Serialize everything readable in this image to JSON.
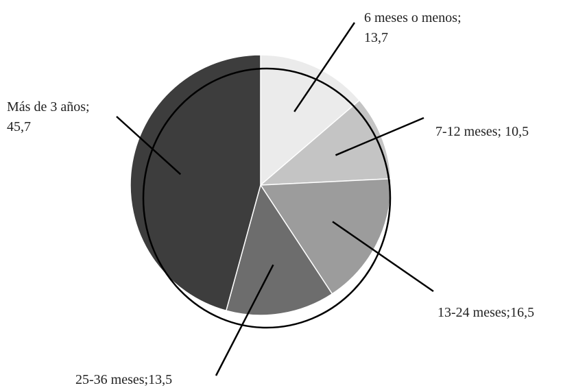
{
  "chart_data": {
    "type": "pie",
    "title": "",
    "categories": [
      "6 meses o menos",
      "7-12 meses",
      "13-24 meses",
      "25-36 meses",
      "Más de 3 años"
    ],
    "values": [
      13.7,
      10.5,
      16.5,
      13.5,
      45.7
    ],
    "colors": [
      "#ebebeb",
      "#c4c4c4",
      "#9c9c9c",
      "#6d6d6d",
      "#3d3d3d"
    ],
    "labels": [
      {
        "line1": "6 meses o menos;",
        "line2": "13,7"
      },
      {
        "line1": "7-12 meses; 10,5",
        "line2": ""
      },
      {
        "line1": "13-24 meses;16,5",
        "line2": ""
      },
      {
        "line1": "25-36 meses;13,5",
        "line2": ""
      },
      {
        "line1": "Más de 3 años;",
        "line2": "45,7"
      }
    ],
    "start_angle": "12 o'clock, clockwise",
    "legend": "none (labels with leader lines)"
  }
}
